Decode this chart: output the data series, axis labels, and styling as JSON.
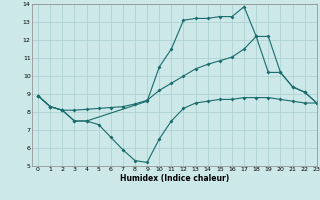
{
  "title": "",
  "xlabel": "Humidex (Indice chaleur)",
  "xlim": [
    -0.5,
    23
  ],
  "ylim": [
    5,
    14
  ],
  "yticks": [
    5,
    6,
    7,
    8,
    9,
    10,
    11,
    12,
    13,
    14
  ],
  "xticks": [
    0,
    1,
    2,
    3,
    4,
    5,
    6,
    7,
    8,
    9,
    10,
    11,
    12,
    13,
    14,
    15,
    16,
    17,
    18,
    19,
    20,
    21,
    22,
    23
  ],
  "bg_color": "#cce8e8",
  "line_color": "#1a6b6b",
  "grid_color": "#aacece",
  "line1_x": [
    0,
    1,
    2,
    3,
    4,
    9,
    10,
    11,
    12,
    13,
    14,
    15,
    16,
    17,
    18,
    19,
    20,
    21,
    22,
    23
  ],
  "line1_y": [
    8.9,
    8.3,
    8.1,
    7.5,
    7.5,
    8.6,
    10.5,
    11.5,
    13.1,
    13.2,
    13.2,
    13.3,
    13.3,
    13.85,
    12.2,
    12.2,
    10.2,
    9.4,
    9.1,
    8.5
  ],
  "line2_x": [
    0,
    1,
    2,
    3,
    4,
    5,
    6,
    7,
    8,
    9,
    10,
    11,
    12,
    13,
    14,
    15,
    16,
    17,
    18,
    19,
    20,
    21,
    22,
    23
  ],
  "line2_y": [
    8.9,
    8.3,
    8.1,
    7.5,
    7.5,
    7.3,
    6.6,
    5.9,
    5.3,
    5.2,
    6.5,
    7.5,
    8.2,
    8.5,
    8.6,
    8.7,
    8.7,
    8.8,
    8.8,
    8.8,
    8.7,
    8.6,
    8.5,
    8.5
  ],
  "line3_x": [
    0,
    1,
    2,
    3,
    4,
    5,
    6,
    7,
    8,
    9,
    10,
    11,
    12,
    13,
    14,
    15,
    16,
    17,
    18,
    19,
    20,
    21,
    22,
    23
  ],
  "line3_y": [
    8.9,
    8.3,
    8.1,
    8.1,
    8.15,
    8.2,
    8.25,
    8.3,
    8.45,
    8.65,
    9.2,
    9.6,
    10.0,
    10.4,
    10.65,
    10.85,
    11.05,
    11.5,
    12.2,
    10.2,
    10.2,
    9.4,
    9.1,
    8.5
  ]
}
